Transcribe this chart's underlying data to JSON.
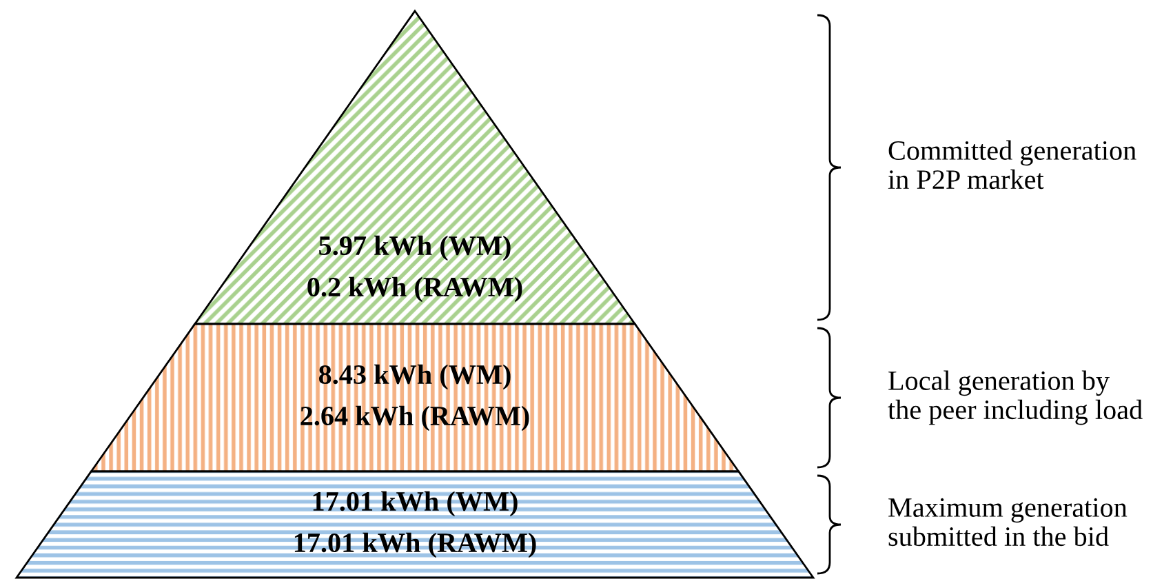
{
  "chart_data": {
    "type": "other",
    "categories": [
      "Committed generation\nin P2P market",
      "Local generation by\nthe peer including load",
      "Maximum generation\nsubmitted in the bid"
    ],
    "colors": [
      "#a9d18e",
      "#f4b183",
      "#9dc3e6"
    ],
    "series": [
      {
        "values": [
          5.97,
          8.43,
          17.01
        ],
        "value_labels": [
          "5.97 kWh (WM)",
          "8.43 kWh (WM)",
          "17.01 kWh (WM)"
        ]
      },
      {
        "values": [
          0.2,
          2.64,
          17.01
        ],
        "value_labels": [
          "0.2 kWh (RAWM)",
          "2.64 kWh (RAWM)",
          "17.01 kWh (RAWM)"
        ]
      }
    ]
  }
}
